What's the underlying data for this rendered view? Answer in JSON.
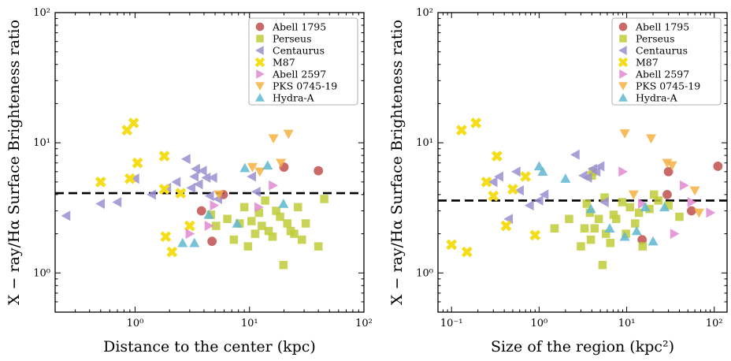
{
  "colors": {
    "Abell 1795": "#c0504d",
    "Perseus": "#bfcc3a",
    "Centaurus": "#9b8fd1",
    "M87": "#f5dd1a",
    "Abell 2597": "#e08ad0",
    "PKS 0745-19": "#f4b041",
    "Hydra-A": "#5fb7d0"
  },
  "markers": {
    "Abell 1795": "circle",
    "Perseus": "square",
    "Centaurus": "triangle-left",
    "M87": "x",
    "Abell 2597": "triangle-right",
    "PKS 0745-19": "triangle-down",
    "Hydra-A": "triangle-up"
  },
  "chart_data": [
    {
      "type": "scatter",
      "xlabel": "Distance to the center (kpc)",
      "ylabel": "X − ray/Hα Surface Brighteness ratio",
      "xscale": "log",
      "yscale": "log",
      "xlim": [
        0.2,
        100
      ],
      "ylim": [
        0.5,
        100
      ],
      "xticks": [
        "10⁰",
        "10¹",
        "10²"
      ],
      "yticks": [
        "10⁰",
        "10¹",
        "10²"
      ],
      "legend_position": "top-right",
      "reference_line_y": 4.1,
      "series": [
        {
          "name": "Abell 1795",
          "x": [
            3.8,
            4.7,
            5.9,
            20,
            40
          ],
          "y": [
            3.0,
            1.75,
            4.0,
            6.5,
            6.1
          ]
        },
        {
          "name": "Perseus",
          "x": [
            4.6,
            5.1,
            6.4,
            7.3,
            8.2,
            9.0,
            9.7,
            10.4,
            11.2,
            12.1,
            12.8,
            13.7,
            14.7,
            15.9,
            17.1,
            18.5,
            19.8,
            21.4,
            22.9,
            24.6,
            26.5,
            28.7,
            31,
            40,
            45
          ],
          "y": [
            2.8,
            2.3,
            2.6,
            1.8,
            2.4,
            3.2,
            1.6,
            2.5,
            2.0,
            2.9,
            2.3,
            3.6,
            2.1,
            1.9,
            3.0,
            2.7,
            1.15,
            2.4,
            2.1,
            2.0,
            3.2,
            1.8,
            2.4,
            1.6,
            3.7
          ]
        },
        {
          "name": "Centaurus",
          "x": [
            0.25,
            0.5,
            0.7,
            1.0,
            1.4,
            1.9,
            2.3,
            2.8,
            3.1,
            3.3,
            3.4,
            3.6,
            3.9,
            4.2,
            4.5,
            4.8,
            5.3,
            10.5,
            11.5
          ],
          "y": [
            2.75,
            3.4,
            3.5,
            5.3,
            4.0,
            4.5,
            5.0,
            7.5,
            4.5,
            5.5,
            6.3,
            4.8,
            6.1,
            5.4,
            3.9,
            5.4,
            3.7,
            5.5,
            4.2
          ]
        },
        {
          "name": "M87",
          "x": [
            0.5,
            0.85,
            0.9,
            0.97,
            1.05,
            1.8,
            1.8,
            1.85,
            2.1,
            2.5,
            3.0
          ],
          "y": [
            5.0,
            12.5,
            5.3,
            14.2,
            7.0,
            7.9,
            4.4,
            1.9,
            1.45,
            4.1,
            2.3
          ]
        },
        {
          "name": "Abell 2597",
          "x": [
            3.0,
            4.4,
            4.9,
            12.0,
            16.0
          ],
          "y": [
            2.0,
            2.3,
            3.3,
            3.2,
            4.7
          ]
        },
        {
          "name": "PKS 0745-19",
          "x": [
            5.4,
            10.6,
            12.3,
            16.2,
            18.8,
            21.9
          ],
          "y": [
            4.0,
            6.5,
            6.0,
            10.8,
            7.0,
            11.7
          ]
        },
        {
          "name": "Hydra-A",
          "x": [
            2.6,
            3.3,
            4.4,
            7.8,
            9.1,
            14.4,
            19.8
          ],
          "y": [
            1.7,
            1.7,
            2.8,
            2.4,
            6.4,
            6.7,
            3.4
          ]
        }
      ]
    },
    {
      "type": "scatter",
      "xlabel": "Size of the region (kpc²)",
      "ylabel": "X − ray/Hα Surface Brighteness ratio",
      "xscale": "log",
      "yscale": "log",
      "xlim": [
        0.07,
        140
      ],
      "ylim": [
        0.5,
        100
      ],
      "xticks": [
        "10⁻¹",
        "10⁰",
        "10¹",
        "10²"
      ],
      "yticks": [
        "10⁰",
        "10¹",
        "10²"
      ],
      "legend_position": "top-right",
      "reference_line_y": 3.6,
      "series": [
        {
          "name": "Abell 1795",
          "x": [
            15,
            29,
            30,
            55,
            110
          ],
          "y": [
            1.8,
            4.0,
            6.0,
            3.0,
            6.6
          ]
        },
        {
          "name": "Perseus",
          "x": [
            1.5,
            2.2,
            3.0,
            3.3,
            3.5,
            3.8,
            3.9,
            4.0,
            4.1,
            4.3,
            4.8,
            5.3,
            5.6,
            5.8,
            6.5,
            7.1,
            7.6,
            8.9,
            9.8,
            10.9,
            12.5,
            13.8,
            15.2,
            18.2,
            20.5,
            23.0,
            30.0,
            40.0
          ],
          "y": [
            2.2,
            2.6,
            1.6,
            2.2,
            3.4,
            2.9,
            1.8,
            5.6,
            6.0,
            2.2,
            2.6,
            1.15,
            3.8,
            2.0,
            1.7,
            2.8,
            2.6,
            3.5,
            2.0,
            3.2,
            2.4,
            2.9,
            1.6,
            3.1,
            4.0,
            3.6,
            3.3,
            2.7
          ]
        },
        {
          "name": "Centaurus",
          "x": [
            0.3,
            0.35,
            0.45,
            0.55,
            0.6,
            0.78,
            1.0,
            1.15,
            2.6,
            3.2,
            3.6,
            4.1,
            4.5,
            5.0,
            5.6
          ],
          "y": [
            5.0,
            5.5,
            2.6,
            6.0,
            4.3,
            3.3,
            3.6,
            4.0,
            8.1,
            5.6,
            5.4,
            6.3,
            6.0,
            6.6,
            3.5
          ]
        },
        {
          "name": "M87",
          "x": [
            0.1,
            0.13,
            0.15,
            0.19,
            0.25,
            0.3,
            0.33,
            0.42,
            0.5,
            0.7,
            0.9
          ],
          "y": [
            1.65,
            12.5,
            1.45,
            14.2,
            5.0,
            3.9,
            7.9,
            2.3,
            4.4,
            5.5,
            1.95
          ]
        },
        {
          "name": "Abell 2597",
          "x": [
            9.0,
            15.0,
            35.0,
            45.0,
            55.0,
            90.0
          ],
          "y": [
            6.0,
            3.4,
            2.0,
            4.7,
            3.5,
            2.9
          ]
        },
        {
          "name": "PKS 0745-19",
          "x": [
            9.5,
            12.0,
            19.0,
            29.0,
            33.0,
            60.0,
            67.0
          ],
          "y": [
            11.8,
            4.0,
            10.8,
            7.0,
            6.7,
            4.3,
            2.9
          ]
        },
        {
          "name": "Hydra-A",
          "x": [
            1.0,
            1.1,
            2.0,
            3.9,
            6.4,
            9.5,
            13.0,
            16.3,
            20.0,
            27.0
          ],
          "y": [
            6.6,
            6.0,
            5.3,
            3.1,
            2.2,
            1.9,
            2.1,
            3.2,
            1.75,
            3.2
          ]
        }
      ]
    }
  ]
}
